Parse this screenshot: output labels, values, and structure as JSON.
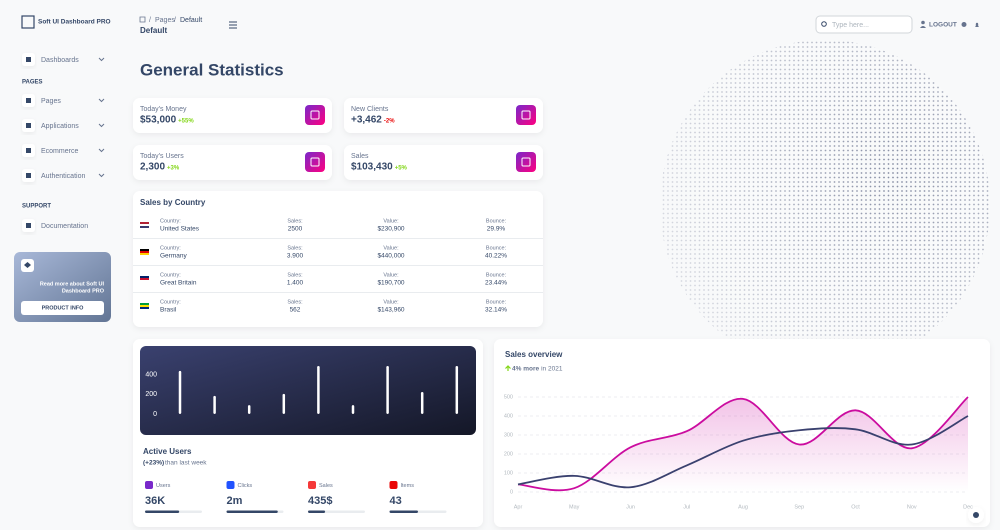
{
  "sidebar": {
    "brand": "Soft UI Dashboard PRO",
    "dashboards": "Dashboards",
    "pages_heading": "PAGES",
    "pages": [
      "Pages",
      "Applications",
      "Ecommerce",
      "Authentication"
    ],
    "support_heading": "SUPPORT",
    "documentation": "Documentation",
    "help_card": {
      "text_lines": [
        "Read more about Soft UI",
        "Dashboard PRO"
      ],
      "button": "PRODUCT INFO"
    }
  },
  "header": {
    "breadcrumb": [
      "Pages",
      "Default"
    ],
    "title": "Default",
    "search_placeholder": "Type here...",
    "logout": "LOGOUT"
  },
  "page_title": "General Statistics",
  "stats": [
    {
      "label": "Today's Money",
      "value": "$53,000",
      "change": "+55%"
    },
    {
      "label": "New Clients",
      "value": "+3,462",
      "change": "-2%"
    },
    {
      "label": "Today's Users",
      "value": "2,300",
      "change": "+3%"
    },
    {
      "label": "Sales",
      "value": "$103,430",
      "change": "+5%"
    }
  ],
  "sales_by_country": {
    "title": "Sales by Country",
    "headers": [
      "Country:",
      "Sales:",
      "Value:",
      "Bounce:"
    ],
    "rows": [
      [
        "United States",
        "2500",
        "$230,900",
        "29.9%"
      ],
      [
        "Germany",
        "3.900",
        "$440,000",
        "40.22%"
      ],
      [
        "Great Britain",
        "1.400",
        "$190,700",
        "23.44%"
      ],
      [
        "Brasil",
        "562",
        "$143,960",
        "32.14%"
      ]
    ]
  },
  "active_users": {
    "title": "Active Users",
    "change": "(+23%)",
    "subtitle": "than last week",
    "items": [
      {
        "label": "Users",
        "value": "36K",
        "progress": 60,
        "color": "#7928ca"
      },
      {
        "label": "Clicks",
        "value": "2m",
        "progress": 90,
        "color": "#2152ff"
      },
      {
        "label": "Sales",
        "value": "435$",
        "progress": 30,
        "color": "#f53939"
      },
      {
        "label": "Items",
        "value": "43",
        "progress": 50,
        "color": "#ea0606"
      }
    ]
  },
  "chart_data": [
    {
      "type": "bar",
      "categories": [
        null,
        null,
        null,
        null,
        null,
        null,
        null,
        null,
        null
      ],
      "values": [
        440,
        185,
        90,
        205,
        490,
        90,
        490,
        225,
        490
      ],
      "color": "#ffffff",
      "ylim": [
        0,
        500
      ],
      "yticks": [
        0,
        200,
        400
      ]
    },
    {
      "type": "line",
      "title": "Sales overview",
      "subtitle_highlight": "4% more",
      "subtitle": "in 2021",
      "categories": [
        "Apr",
        "May",
        "Jun",
        "Jul",
        "Aug",
        "Sep",
        "Oct",
        "Nov",
        "Dec"
      ],
      "series": [
        {
          "color": "#cb0c9f",
          "values": [
            40,
            20,
            235,
            320,
            490,
            250,
            430,
            230,
            500
          ]
        },
        {
          "color": "#3a416f",
          "values": [
            40,
            85,
            25,
            140,
            270,
            325,
            330,
            250,
            400
          ]
        }
      ],
      "ylim": [
        0,
        500
      ],
      "yticks": [
        0,
        100,
        200,
        300,
        400,
        500
      ],
      "grid": true
    }
  ]
}
